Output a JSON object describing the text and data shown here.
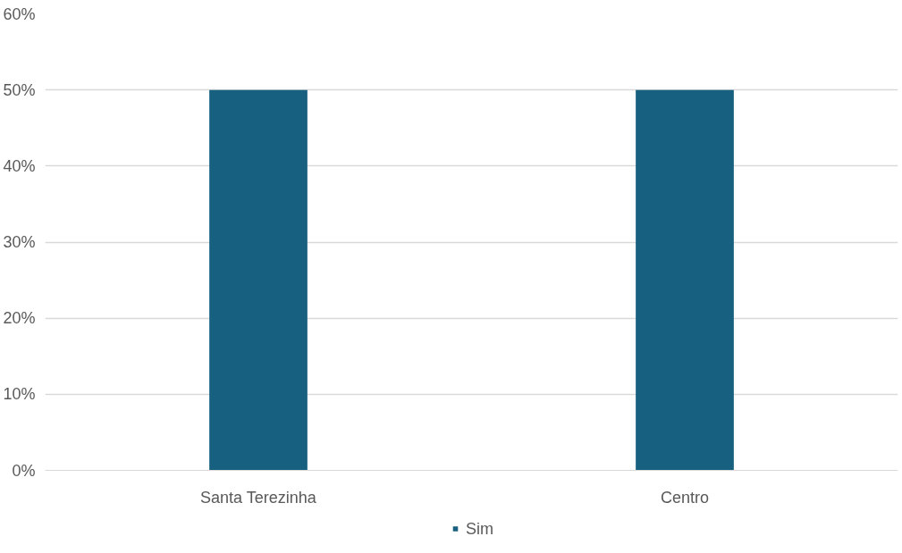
{
  "chart_data": {
    "type": "bar",
    "categories": [
      "Santa Terezinha",
      "Centro"
    ],
    "series": [
      {
        "name": "Sim",
        "color": "#17607f",
        "values": [
          50,
          50
        ]
      }
    ],
    "ylim": [
      0,
      60
    ],
    "yticks": [
      {
        "value": 0,
        "label": "0%"
      },
      {
        "value": 10,
        "label": "10%"
      },
      {
        "value": 20,
        "label": "20%"
      },
      {
        "value": 30,
        "label": "30%"
      },
      {
        "value": 40,
        "label": "40%"
      },
      {
        "value": 50,
        "label": "50%"
      },
      {
        "value": 60,
        "label": "60%"
      }
    ],
    "grid": "y",
    "legend": "bottom"
  }
}
